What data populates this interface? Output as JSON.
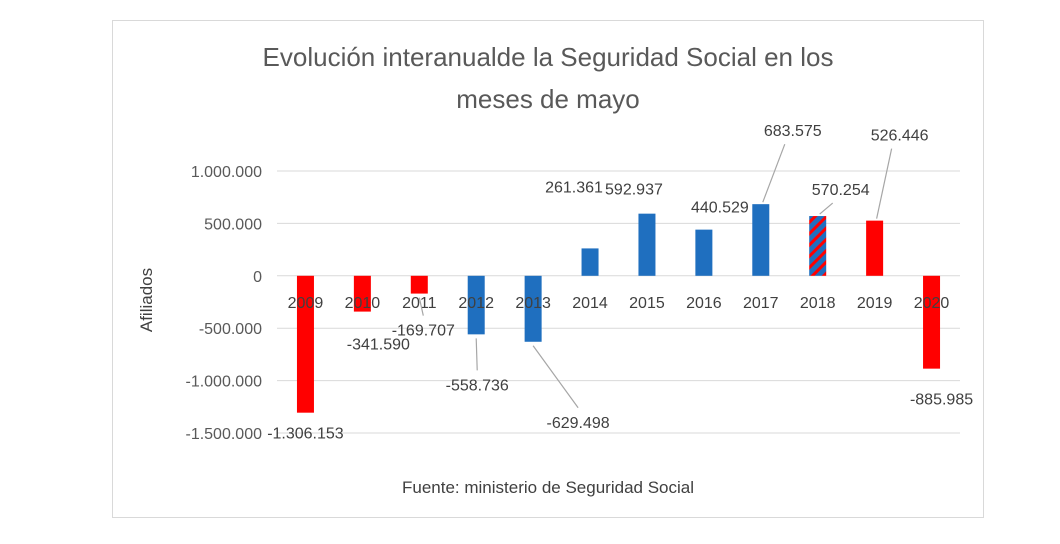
{
  "chart_data": {
    "type": "bar",
    "title_lines": [
      "Evolución interanualde la Seguridad Social en los",
      "meses de mayo"
    ],
    "ylabel": "Afiliados",
    "xlabel": "",
    "ylim": [
      -1500000,
      1000000
    ],
    "yticks": [
      1000000,
      500000,
      0,
      -500000,
      -1000000,
      -1500000
    ],
    "ytick_labels": [
      "1.000.000",
      "500.000",
      "0",
      "-500.000",
      "-1.000.000",
      "-1.500.000"
    ],
    "grid": true,
    "categories": [
      "2009",
      "2010",
      "2011",
      "2012",
      "2013",
      "2014",
      "2015",
      "2016",
      "2017",
      "2018",
      "2019",
      "2020"
    ],
    "values": [
      -1306153,
      -341590,
      -169707,
      -558736,
      -629498,
      261361,
      592937,
      440529,
      683575,
      570254,
      526446,
      -885985
    ],
    "value_labels": [
      "-1.306.153",
      "-341.590",
      "-169.707",
      "-558.736",
      "-629.498",
      "261.361",
      "592.937",
      "440.529",
      "683.575",
      "570.254",
      "526.446",
      "-885.985"
    ],
    "bar_colors": [
      "#ff0000",
      "#ff0000",
      "#ff0000",
      "#1f6fbf",
      "#1f6fbf",
      "#1f6fbf",
      "#1f6fbf",
      "#1f6fbf",
      "#1f6fbf",
      "striped",
      "#ff0000",
      "#ff0000"
    ],
    "source": "Fuente: ministerio de Seguridad Social"
  },
  "colors": {
    "red": "#ff0000",
    "blue": "#1f6fbf",
    "grid": "#d9d9d9",
    "leader": "#a6a6a6"
  }
}
